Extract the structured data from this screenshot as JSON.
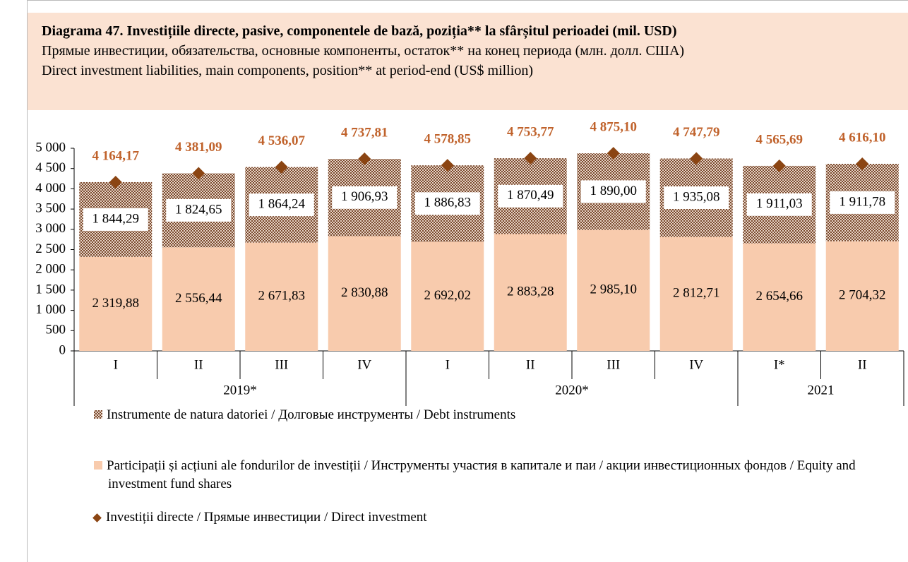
{
  "chart_data": {
    "type": "bar",
    "stacked": true,
    "title": "Diagrama 47. Investițiile directe, pasive, componentele de bază, poziția** la sfârșitul perioadei (mil. USD)",
    "subtitles": [
      "Прямые инвестиции, обязательства, основные компоненты, остаток** на конец периода (млн. долл. США)",
      "Direct investment liabilities, main components, position** at period-end (US$ million)"
    ],
    "groups": [
      {
        "label": "2019*",
        "categories": [
          "I",
          "II",
          "III",
          "IV"
        ]
      },
      {
        "label": "2020*",
        "categories": [
          "I",
          "II",
          "III",
          "IV"
        ]
      },
      {
        "label": "2021",
        "categories": [
          "I*",
          "II"
        ]
      }
    ],
    "series": [
      {
        "name": "Instrumente de natura datoriei / Долговые инструменты / Debt instruments",
        "color": "#7a4a2e",
        "values": [
          1844.29,
          1824.65,
          1864.24,
          1906.93,
          1886.83,
          1870.49,
          1890.0,
          1935.08,
          1911.03,
          1911.78
        ],
        "value_labels": [
          "1 844,29",
          "1 824,65",
          "1 864,24",
          "1 906,93",
          "1 886,83",
          "1 870,49",
          "1 890,00",
          "1 935,08",
          "1 911,03",
          "1 911,78"
        ]
      },
      {
        "name": "Participații și acțiuni ale fondurilor de investiții / Инструменты участия в капитале и паи / акции инвестиционных фондов / Equity and investment fund shares",
        "color": "#f8cbad",
        "values": [
          2319.88,
          2556.44,
          2671.83,
          2830.88,
          2692.02,
          2883.28,
          2985.1,
          2812.71,
          2654.66,
          2704.32
        ],
        "value_labels": [
          "2 319,88",
          "2 556,44",
          "2 671,83",
          "2 830,88",
          "2 692,02",
          "2 883,28",
          "2 985,10",
          "2 812,71",
          "2 654,66",
          "2 704,32"
        ]
      },
      {
        "name": "Investiții directe / Прямые инвестиции / Direct investment",
        "type": "marker",
        "color": "#8b4513",
        "label_color": "#c0622b",
        "values": [
          4164.17,
          4381.09,
          4536.07,
          4737.81,
          4578.85,
          4753.77,
          4875.1,
          4747.79,
          4565.69,
          4616.1
        ],
        "value_labels": [
          "4 164,17",
          "4 381,09",
          "4 536,07",
          "4 737,81",
          "4 578,85",
          "4 753,77",
          "4 875,10",
          "4 747,79",
          "4 565,69",
          "4 616,10"
        ]
      }
    ],
    "ylim": [
      0,
      5000
    ],
    "yticks": [
      0,
      500,
      {
        "value": 1000,
        "label": "1 000"
      },
      {
        "value": 1500,
        "label": "1 500"
      },
      {
        "value": 2000,
        "label": "2 000"
      },
      {
        "value": 2500,
        "label": "2 500"
      },
      {
        "value": 3000,
        "label": "3 000"
      },
      {
        "value": 3500,
        "label": "3 500"
      },
      {
        "value": 4000,
        "label": "4 000"
      },
      {
        "value": 4500,
        "label": "4 500"
      },
      {
        "value": 5000,
        "label": "5 000"
      }
    ]
  }
}
